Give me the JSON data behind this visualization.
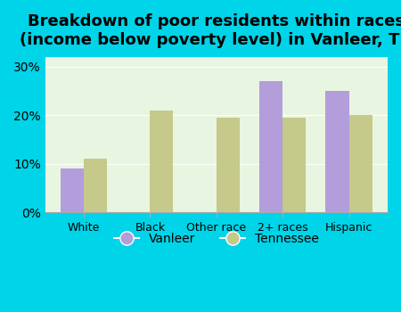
{
  "title": "Breakdown of poor residents within races\n(income below poverty level) in Vanleer, TN",
  "categories": [
    "White",
    "Black",
    "Other race",
    "2+ races",
    "Hispanic"
  ],
  "vanleer_values": [
    9,
    0,
    0,
    27,
    25
  ],
  "tennessee_values": [
    11,
    21,
    19.5,
    19.5,
    20
  ],
  "vanleer_color": "#b39ddb",
  "tennessee_color": "#c5c98a",
  "background_outer": "#00d4e8",
  "background_inner": "#e8f5e0",
  "yticks": [
    0,
    10,
    20,
    30
  ],
  "ylim": [
    0,
    32
  ],
  "bar_width": 0.35,
  "title_fontsize": 13,
  "legend_labels": [
    "Vanleer",
    "Tennessee"
  ]
}
